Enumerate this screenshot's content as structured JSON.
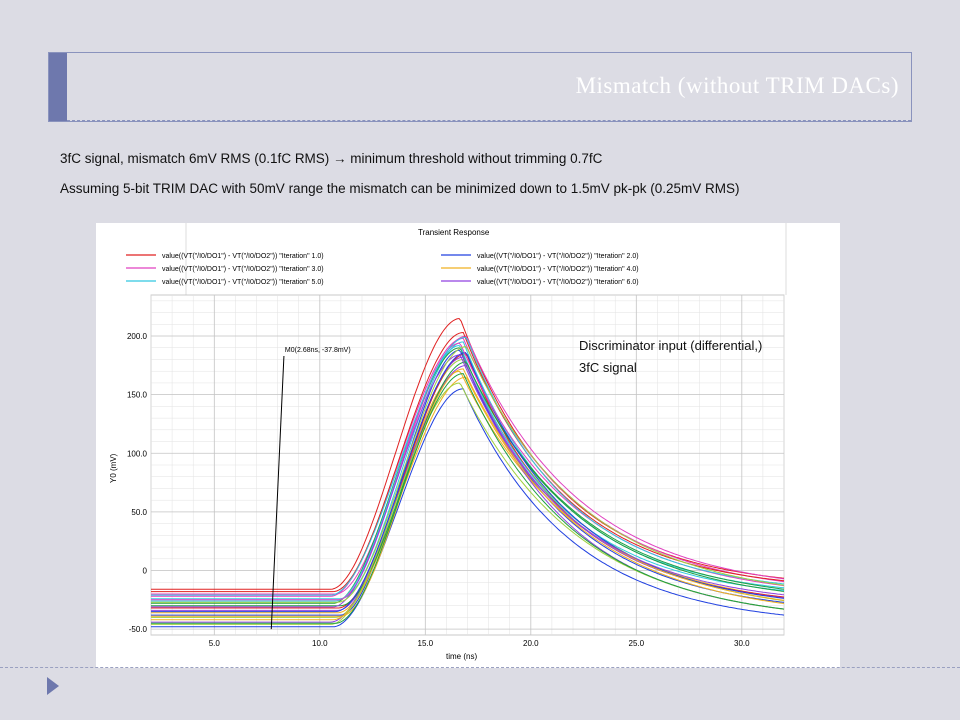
{
  "slide": {
    "title": "Mismatch (without TRIM DACs)",
    "line1": "3fC signal, mismatch 6mV RMS (0.1fC RMS)  →  minimum threshold without trimming 0.7fC",
    "line2": "Assuming 5-bit TRIM DAC with 50mV range the mismatch can be minimized down to 1.5mV pk-pk (0.25mV RMS)"
  },
  "colors": {
    "accent": "#6e78ad",
    "series": [
      "#e02020",
      "#2040e0",
      "#e040c0",
      "#f0b020",
      "#30c8e0",
      "#9040e0",
      "#20a040",
      "#a0d040"
    ]
  },
  "chart_data": {
    "type": "line",
    "title": "Transient Response",
    "xlabel": "time (ns)",
    "ylabel": "Y0 (mV)",
    "xlim": [
      2,
      32
    ],
    "ylim": [
      -55,
      235
    ],
    "x_ticks": [
      "5.0",
      "10.0",
      "15.0",
      "20.0",
      "25.0",
      "30.0"
    ],
    "x_tick_values": [
      5,
      10,
      15,
      20,
      25,
      30
    ],
    "y_ticks": [
      "200.0",
      "150.0",
      "100.0",
      "50.0",
      "0",
      "-50.0"
    ],
    "y_tick_values": [
      200,
      150,
      100,
      50,
      0,
      -50
    ],
    "grid": true,
    "legend_placement": "top",
    "legend": [
      "value((VT(\"/I0/DO1\") - VT(\"/I0/DO2\")) \"Iteration\" 1.0)",
      "value((VT(\"/I0/DO1\") - VT(\"/I0/DO2\")) \"Iteration\" 2.0)",
      "value((VT(\"/I0/DO1\") - VT(\"/I0/DO2\")) \"Iteration\" 3.0)",
      "value((VT(\"/I0/DO1\") - VT(\"/I0/DO2\")) \"Iteration\" 4.0)",
      "value((VT(\"/I0/DO1\") - VT(\"/I0/DO2\")) \"Iteration\" 5.0)",
      "value((VT(\"/I0/DO1\") - VT(\"/I0/DO2\")) \"Iteration\" 6.0)"
    ],
    "marker": {
      "label": "M0(2.68ns, -37.8mV)",
      "x0": 7.7,
      "y0": -50,
      "x1": 8.3,
      "y1": 183
    },
    "annotation": [
      "Discriminator input (differential,)",
      "3fC signal"
    ],
    "series_shape": {
      "t_start": 10.5,
      "t_peak": 16.8,
      "tau": 4.8
    },
    "baselines": [
      -16,
      -48,
      -20,
      -36,
      -24,
      -44,
      -28,
      -40,
      -32,
      -38,
      -22,
      -42,
      -26,
      -34,
      -30,
      -46,
      -18,
      -35,
      -25,
      -39,
      -21,
      -31,
      -45,
      -27
    ],
    "peaks": [
      215,
      155,
      200,
      170,
      195,
      175,
      190,
      180,
      185,
      188,
      198,
      165,
      192,
      182,
      178,
      160,
      203,
      186,
      194,
      172,
      199,
      184,
      168,
      191
    ]
  }
}
